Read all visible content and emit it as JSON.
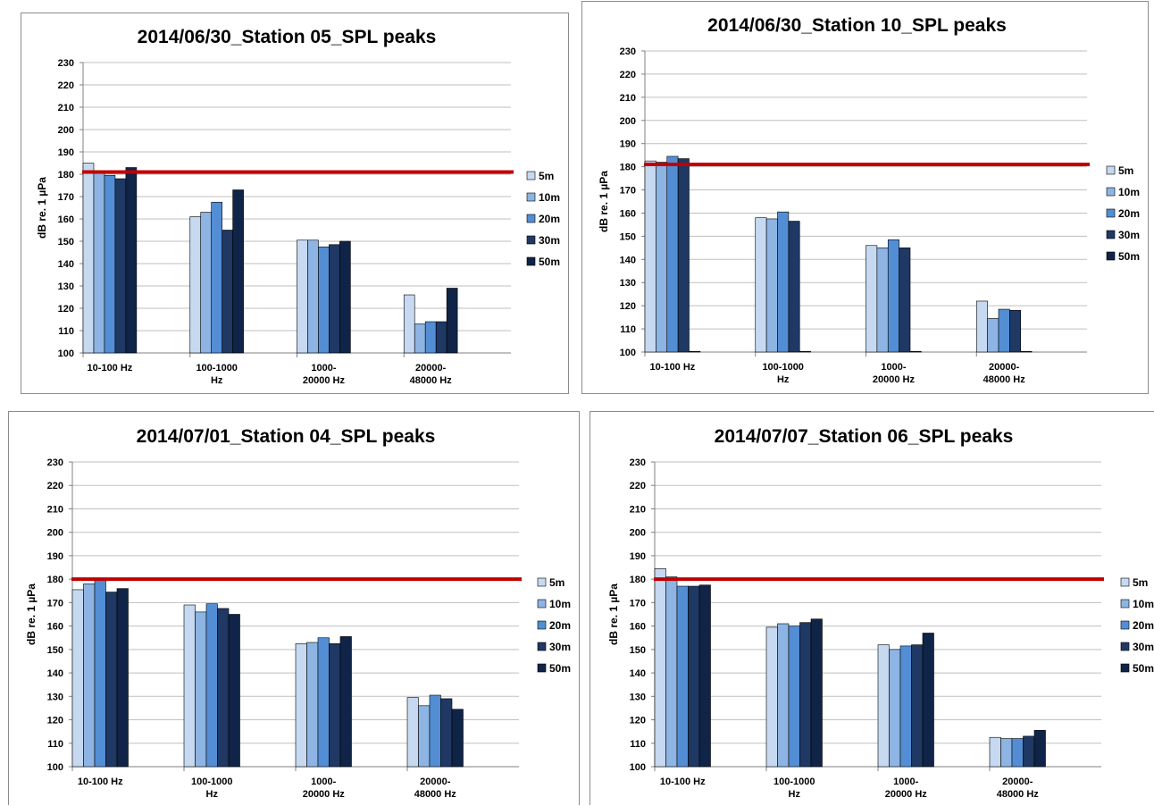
{
  "legend_labels": [
    "5m",
    "10m",
    "20m",
    "30m",
    "50m"
  ],
  "y_label": "dB re. 1 µPa",
  "category_labels": [
    [
      "10-100 Hz"
    ],
    [
      "100-1000",
      "Hz"
    ],
    [
      "1000-",
      "20000 Hz"
    ],
    [
      "20000-",
      "48000 Hz"
    ]
  ],
  "colors": {
    "series": [
      "#c6d9f1",
      "#8db4e2",
      "#538ed5",
      "#1f3864",
      "#0f2447"
    ],
    "threshold": "#c00000",
    "grid": "#bfbfbf"
  },
  "chart_data": [
    {
      "type": "bar",
      "title": "2014/06/30_Station 05_SPL peaks",
      "ylabel": "dB re. 1 µPa",
      "ylim": [
        100,
        230
      ],
      "yticks": [
        100,
        110,
        120,
        130,
        140,
        150,
        160,
        170,
        180,
        190,
        200,
        210,
        220,
        230
      ],
      "grid": true,
      "legend_position": "right",
      "categories": [
        "10-100 Hz",
        "100-1000 Hz",
        "1000-20000 Hz",
        "20000-48000 Hz"
      ],
      "threshold": 181,
      "series": [
        {
          "name": "5m",
          "values": [
            185,
            161,
            150.5,
            126
          ]
        },
        {
          "name": "10m",
          "values": [
            181,
            163,
            150.5,
            113
          ]
        },
        {
          "name": "20m",
          "values": [
            179.5,
            167.5,
            147.5,
            114
          ]
        },
        {
          "name": "30m",
          "values": [
            178,
            155,
            148.5,
            114
          ]
        },
        {
          "name": "50m",
          "values": [
            183,
            173,
            150,
            129
          ]
        }
      ]
    },
    {
      "type": "bar",
      "title": "2014/06/30_Station 10_SPL peaks",
      "ylabel": "dB re. 1 µPa",
      "ylim": [
        100,
        230
      ],
      "yticks": [
        100,
        110,
        120,
        130,
        140,
        150,
        160,
        170,
        180,
        190,
        200,
        210,
        220,
        230
      ],
      "grid": true,
      "legend_position": "right",
      "categories": [
        "10-100 Hz",
        "100-1000 Hz",
        "1000-20000 Hz",
        "20000-48000 Hz"
      ],
      "threshold": 181,
      "series": [
        {
          "name": "5m",
          "values": [
            182.5,
            158,
            146,
            122
          ]
        },
        {
          "name": "10m",
          "values": [
            182,
            157.5,
            145,
            114.5
          ]
        },
        {
          "name": "20m",
          "values": [
            184.5,
            160.5,
            148.5,
            118.5
          ]
        },
        {
          "name": "30m",
          "values": [
            183.5,
            156.5,
            145,
            118
          ]
        },
        {
          "name": "50m",
          "values": [
            100,
            100,
            100,
            100
          ]
        }
      ]
    },
    {
      "type": "bar",
      "title": "2014/07/01_Station 04_SPL peaks",
      "ylabel": "dB re. 1 µPa",
      "ylim": [
        100,
        230
      ],
      "yticks": [
        100,
        110,
        120,
        130,
        140,
        150,
        160,
        170,
        180,
        190,
        200,
        210,
        220,
        230
      ],
      "grid": true,
      "legend_position": "right",
      "categories": [
        "10-100 Hz",
        "100-1000 Hz",
        "1000-20000 Hz",
        "20000-48000 Hz"
      ],
      "threshold": 180,
      "series": [
        {
          "name": "5m",
          "values": [
            175.5,
            169,
            152.5,
            129.5
          ]
        },
        {
          "name": "10m",
          "values": [
            178,
            166,
            153,
            126
          ]
        },
        {
          "name": "20m",
          "values": [
            179.5,
            169.5,
            155,
            130.5
          ]
        },
        {
          "name": "30m",
          "values": [
            174.5,
            167.5,
            152.5,
            129
          ]
        },
        {
          "name": "50m",
          "values": [
            176,
            165,
            155.5,
            124.5
          ]
        }
      ]
    },
    {
      "type": "bar",
      "title": "2014/07/07_Station 06_SPL peaks",
      "ylabel": "dB re. 1 µPa",
      "ylim": [
        100,
        230
      ],
      "yticks": [
        100,
        110,
        120,
        130,
        140,
        150,
        160,
        170,
        180,
        190,
        200,
        210,
        220,
        230
      ],
      "grid": true,
      "legend_position": "right",
      "categories": [
        "10-100 Hz",
        "100-1000 Hz",
        "1000-20000 Hz",
        "20000-48000 Hz"
      ],
      "threshold": 180,
      "series": [
        {
          "name": "5m",
          "values": [
            184.5,
            159.5,
            152,
            112.5
          ]
        },
        {
          "name": "10m",
          "values": [
            181,
            161,
            150,
            112
          ]
        },
        {
          "name": "20m",
          "values": [
            177,
            160,
            151.5,
            112
          ]
        },
        {
          "name": "30m",
          "values": [
            177,
            161.5,
            152,
            113
          ]
        },
        {
          "name": "50m",
          "values": [
            177.5,
            163,
            157,
            115.5
          ]
        }
      ]
    }
  ]
}
